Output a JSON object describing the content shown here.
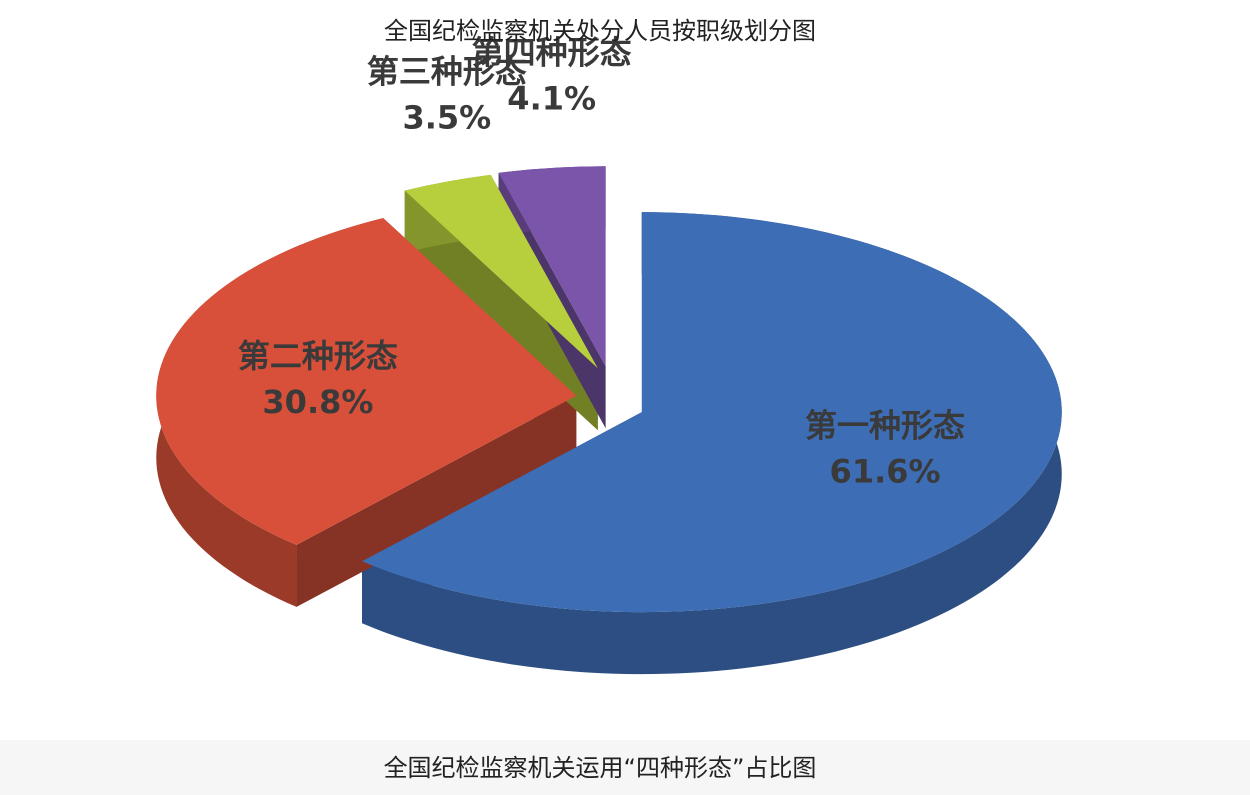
{
  "chart_data": {
    "type": "pie",
    "title": "全国纪检监察机关处分人员按职级划分图",
    "caption": "全国纪检监察机关运用“四种形态”占比图",
    "categories": [
      "第一种形态",
      "第二种形态",
      "第三种形态",
      "第四种形态"
    ],
    "values": [
      61.6,
      30.8,
      3.5,
      4.1
    ],
    "value_labels": [
      "61.6%",
      "30.8%",
      "3.5%",
      "4.1%"
    ],
    "colors": [
      "#3d6db4",
      "#d8503a",
      "#b7cf3c",
      "#7b55aa"
    ]
  }
}
